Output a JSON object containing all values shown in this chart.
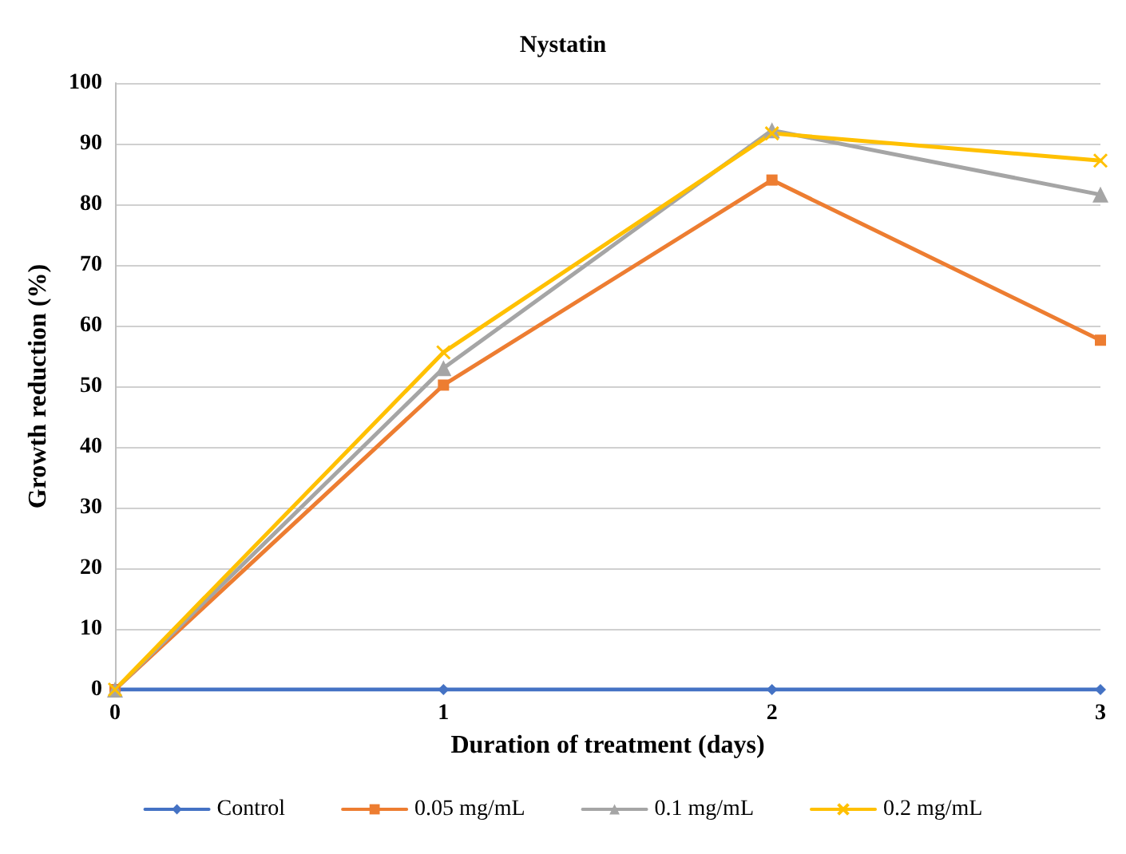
{
  "chart_data": {
    "type": "line",
    "title": "Nystatin",
    "xlabel": "Duration of treatment (days)",
    "ylabel": "Growth reduction (%)",
    "x": [
      0,
      1,
      2,
      3
    ],
    "xlim": [
      0,
      3
    ],
    "xticks": [
      0,
      1,
      2,
      3
    ],
    "ylim": [
      0,
      100
    ],
    "yticks": [
      0,
      10,
      20,
      30,
      40,
      50,
      60,
      70,
      80,
      90,
      100
    ],
    "grid": "y",
    "legend": "bottom",
    "series": [
      {
        "name": "Control",
        "color": "#4472c4",
        "marker": "diamond",
        "values": [
          0,
          0,
          0,
          0
        ]
      },
      {
        "name": "0.05 mg/mL",
        "color": "#ed7d31",
        "marker": "square",
        "values": [
          0,
          50.2,
          84.0,
          57.6
        ]
      },
      {
        "name": "0.1 mg/mL",
        "color": "#a5a5a5",
        "marker": "triangle",
        "values": [
          0,
          53.0,
          92.2,
          81.6
        ]
      },
      {
        "name": "0.2 mg/mL",
        "color": "#ffc000",
        "marker": "cross",
        "values": [
          0,
          55.6,
          91.7,
          87.2
        ]
      }
    ]
  }
}
